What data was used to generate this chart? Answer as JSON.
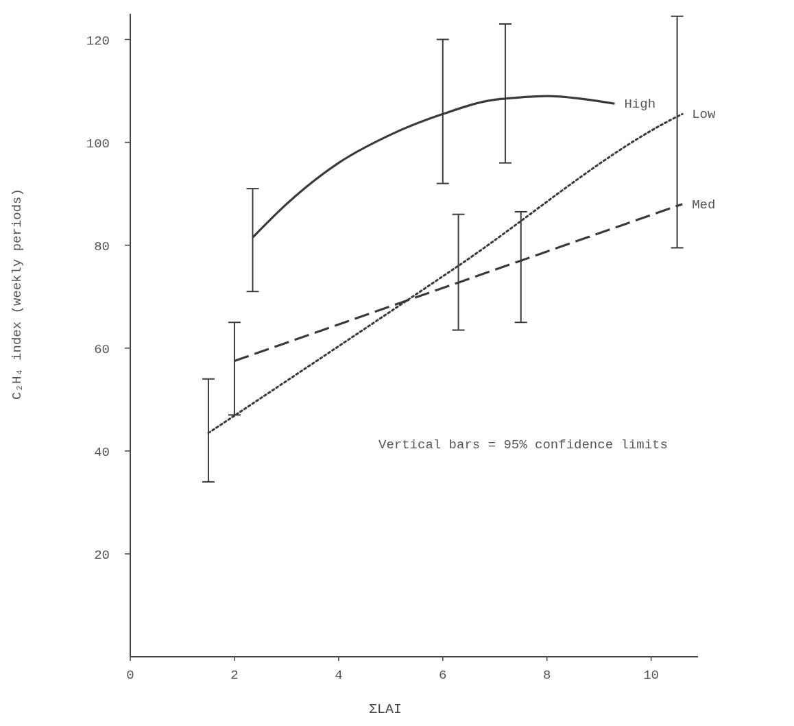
{
  "chart_data": {
    "type": "line",
    "xlabel": "ΣLAI",
    "ylabel": "C₂H₄ index (weekly periods)",
    "xlim": [
      0,
      10.9
    ],
    "ylim": [
      0,
      125
    ],
    "xticks": [
      0,
      2,
      4,
      6,
      8,
      10
    ],
    "yticks": [
      20,
      40,
      60,
      80,
      100,
      120
    ],
    "grid": false,
    "series": [
      {
        "name": "High",
        "line_style": "solid",
        "color": "#3a3a3a",
        "x": [
          2.35,
          3,
          4,
          5,
          6,
          7,
          7.2,
          8,
          9,
          9.3
        ],
        "values": [
          81.5,
          88,
          96,
          101.5,
          105.5,
          108.3,
          108.5,
          109,
          108,
          107.5
        ],
        "errors": [
          [
            71,
            91
          ],
          null,
          null,
          null,
          [
            92,
            120
          ],
          null,
          [
            96,
            123
          ],
          null,
          null,
          null
        ]
      },
      {
        "name": "Low",
        "line_style": "dotted",
        "color": "#3a3a3a",
        "x": [
          1.5,
          6.3,
          10.5,
          10.6
        ],
        "values": [
          43.5,
          76,
          105,
          105.5
        ],
        "errors": [
          [
            34,
            54
          ],
          [
            63.5,
            86
          ],
          [
            79.5,
            124.5
          ],
          null
        ]
      },
      {
        "name": "Med",
        "line_style": "dashed",
        "color": "#3a3a3a",
        "x": [
          2,
          7.5,
          10.6
        ],
        "values": [
          57.5,
          77,
          88
        ],
        "errors": [
          [
            47,
            65
          ],
          [
            65,
            86.5
          ],
          null
        ]
      }
    ],
    "annotations": [
      "Vertical bars = 95% confidence limits"
    ]
  }
}
